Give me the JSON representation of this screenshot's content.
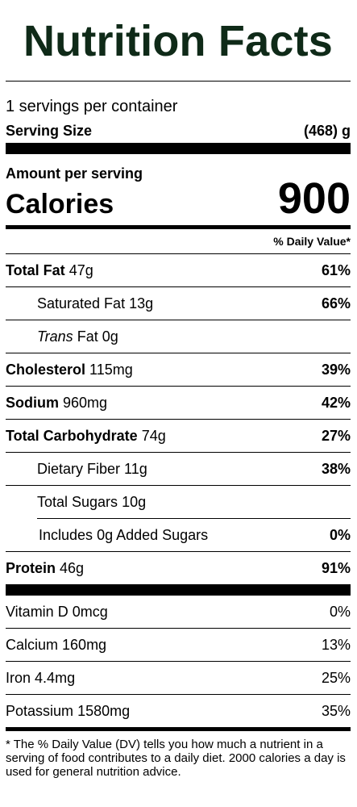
{
  "title": "Nutrition Facts",
  "servings_per_container": "1 servings per container",
  "serving_size": {
    "label": "Serving Size",
    "value": "(468) g"
  },
  "amount_per_serving": "Amount per serving",
  "calories": {
    "label": "Calories",
    "value": "900"
  },
  "dv_header": "% Daily Value*",
  "nutrients": [
    {
      "name": "Total Fat",
      "amount": "47g",
      "dv": "61%"
    },
    {
      "name": "Saturated Fat",
      "amount": "13g",
      "dv": "66%"
    },
    {
      "name": "Trans",
      "name_suffix": "Fat",
      "amount": "0g",
      "dv": ""
    },
    {
      "name": "Cholesterol",
      "amount": "115mg",
      "dv": "39%"
    },
    {
      "name": "Sodium",
      "amount": "960mg",
      "dv": "42%"
    },
    {
      "name": "Total Carbohydrate",
      "amount": "74g",
      "dv": "27%"
    },
    {
      "name": "Dietary Fiber",
      "amount": "11g",
      "dv": "38%"
    },
    {
      "name": "Total Sugars",
      "amount": "10g",
      "dv": ""
    },
    {
      "name": "Includes",
      "amount": "0g Added Sugars",
      "dv": "0%"
    },
    {
      "name": "Protein",
      "amount": "46g",
      "dv": "91%"
    }
  ],
  "vitamins": [
    {
      "name": "Vitamin D",
      "amount": "0mcg",
      "dv": "0%"
    },
    {
      "name": "Calcium",
      "amount": "160mg",
      "dv": "13%"
    },
    {
      "name": "Iron",
      "amount": "4.4mg",
      "dv": "25%"
    },
    {
      "name": "Potassium",
      "amount": "1580mg",
      "dv": "35%"
    }
  ],
  "footnote": "* The % Daily Value (DV) tells you how much a nutrient in a serving of food contributes to a daily diet. 2000 calories a day is used for general nutrition advice.",
  "colors": {
    "title": "#0f2a18",
    "text": "#000000",
    "background": "#ffffff"
  }
}
